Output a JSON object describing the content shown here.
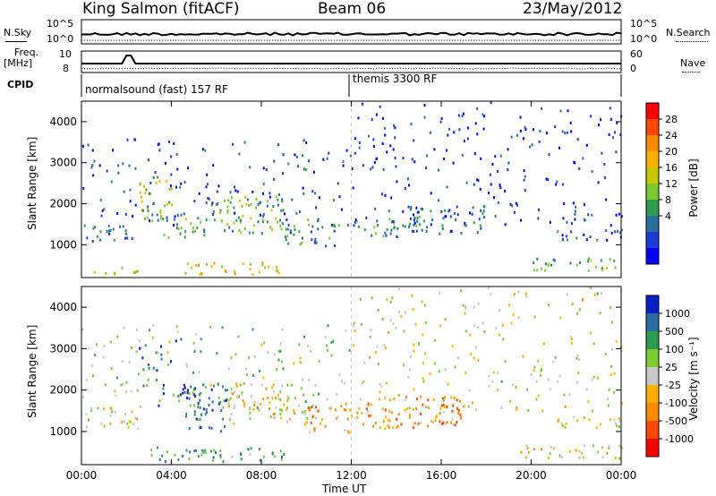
{
  "header": {
    "station": "King Salmon (fitACF)",
    "beam": "Beam 06",
    "date": "23/May/2012"
  },
  "strips": {
    "nsky_label": "N.Sky",
    "nsky_ticks": [
      "10^5",
      "10^0"
    ],
    "nsearch_label": "N.Search",
    "nsearch_ticks": [
      "10^5",
      "10^0"
    ],
    "freq_label": "Freq.",
    "freq_unit": "[MHz]",
    "freq_ticks": [
      "10",
      "8"
    ],
    "nave_label": "Nave",
    "nave_ticks": [
      "60",
      "0"
    ],
    "cpid_label": "CPID",
    "cpid_segments": [
      "normalsound (fast) 157 RF",
      "themis 3300 RF"
    ]
  },
  "colorbars": {
    "power": {
      "label": "Power [dB]",
      "ticks": [
        "28",
        "24",
        "20",
        "16",
        "12",
        "8",
        "4"
      ],
      "colors": [
        "#ff0000",
        "#ff4800",
        "#ff8c00",
        "#ffb000",
        "#c8c800",
        "#7ac832",
        "#2e9c50",
        "#2a6ea0",
        "#1e3cd2",
        "#0000ff"
      ]
    },
    "velocity": {
      "label": "Velocity [m s⁻¹]",
      "ticks": [
        "1000",
        "500",
        "100",
        "25",
        "-25",
        "-100",
        "-500",
        "-1000"
      ],
      "colors": [
        "#0a1ec8",
        "#2a6ea0",
        "#2e9c50",
        "#7acc32",
        "#c8c8c8",
        "#ffb000",
        "#ff8c00",
        "#ff4800",
        "#ff0000"
      ]
    }
  },
  "chart_data": [
    {
      "type": "heatmap",
      "title": "Power",
      "xlabel": "Time UT",
      "ylabel": "Slant Range [km]",
      "xticks": [
        "00:00",
        "04:00",
        "08:00",
        "12:00",
        "16:00",
        "20:00",
        "00:00"
      ],
      "yticks": [
        1000,
        2000,
        3000,
        4000
      ],
      "xlim": [
        0,
        24
      ],
      "ylim": [
        200,
        4500
      ],
      "bands": [
        {
          "t0": 0.0,
          "t1": 2.5,
          "r0": 1100,
          "r1": 1500,
          "level": 0.25
        },
        {
          "t0": 2.5,
          "t1": 4.0,
          "r0": 1600,
          "r1": 2600,
          "level": 0.55
        },
        {
          "t0": 3.5,
          "t1": 5.5,
          "r0": 1200,
          "r1": 1700,
          "level": 0.35
        },
        {
          "t0": 5.5,
          "t1": 9.0,
          "r0": 1300,
          "r1": 2200,
          "level": 0.4
        },
        {
          "t0": 9.0,
          "t1": 11.5,
          "r0": 1000,
          "r1": 1700,
          "level": 0.3
        },
        {
          "t0": 0.5,
          "t1": 2.5,
          "r0": 300,
          "r1": 500,
          "level": 0.5
        },
        {
          "t0": 4.5,
          "t1": 9.0,
          "r0": 300,
          "r1": 600,
          "level": 0.6
        },
        {
          "t0": 12.0,
          "t1": 15.0,
          "r0": 1200,
          "r1": 1700,
          "level": 0.3
        },
        {
          "t0": 14.5,
          "t1": 18.0,
          "r0": 1300,
          "r1": 2000,
          "level": 0.25
        },
        {
          "t0": 20.0,
          "t1": 24.0,
          "r0": 400,
          "r1": 700,
          "level": 0.4
        },
        {
          "t0": 21.0,
          "t1": 24.0,
          "r0": 1100,
          "r1": 1400,
          "level": 0.2
        },
        {
          "t0": 0.0,
          "t1": 12.0,
          "r0": 1500,
          "r1": 3600,
          "level": 0.15
        },
        {
          "t0": 12.0,
          "t1": 24.0,
          "r0": 1500,
          "r1": 4500,
          "level": 0.1
        }
      ]
    },
    {
      "type": "heatmap",
      "title": "Velocity",
      "xlabel": "Time UT",
      "ylabel": "Slant Range [km]",
      "xticks": [
        "00:00",
        "04:00",
        "08:00",
        "12:00",
        "16:00",
        "20:00",
        "00:00"
      ],
      "yticks": [
        1000,
        2000,
        3000,
        4000
      ],
      "xlim": [
        0,
        24
      ],
      "ylim": [
        200,
        4500
      ],
      "bands": [
        {
          "t0": 0.0,
          "t1": 2.5,
          "r0": 1100,
          "r1": 1600,
          "level": 0.45
        },
        {
          "t0": 2.5,
          "t1": 4.5,
          "r0": 1400,
          "r1": 3300,
          "level": 0.85
        },
        {
          "t0": 4.5,
          "t1": 6.5,
          "r0": 1000,
          "r1": 2200,
          "level": 0.8
        },
        {
          "t0": 6.5,
          "t1": 10.0,
          "r0": 1200,
          "r1": 2200,
          "level": 0.45
        },
        {
          "t0": 3.0,
          "t1": 9.0,
          "r0": 300,
          "r1": 650,
          "level": 0.7
        },
        {
          "t0": 10.0,
          "t1": 12.0,
          "r0": 1000,
          "r1": 1700,
          "level": 0.35
        },
        {
          "t0": 12.0,
          "t1": 17.0,
          "r0": 1100,
          "r1": 1900,
          "level": 0.3
        },
        {
          "t0": 19.5,
          "t1": 24.0,
          "r0": 350,
          "r1": 700,
          "level": 0.45
        },
        {
          "t0": 21.0,
          "t1": 24.0,
          "r0": 1100,
          "r1": 1400,
          "level": 0.45
        },
        {
          "t0": 0.0,
          "t1": 12.0,
          "r0": 1500,
          "r1": 3600,
          "level": 0.6
        },
        {
          "t0": 12.0,
          "t1": 24.0,
          "r0": 1500,
          "r1": 4500,
          "level": 0.5
        }
      ]
    }
  ]
}
